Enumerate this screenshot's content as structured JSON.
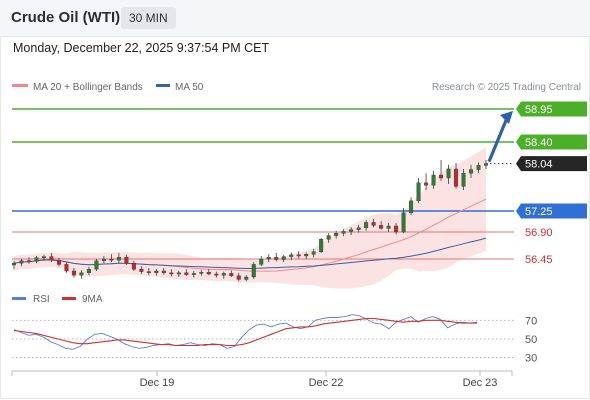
{
  "header": {
    "title": "Crude Oil (WTI)",
    "timeframe": "30 MIN",
    "datetime": "Monday, December 22, 2025 9:37:54 PM CET"
  },
  "legend": {
    "ma20_bb": "MA 20 + Bollinger Bands",
    "ma50": "MA 50",
    "credit": "Research © 2025 Trading Central"
  },
  "rsi_legend": {
    "rsi": "RSI",
    "ma": "9MA"
  },
  "colors": {
    "up": "#2e7d32",
    "down": "#c62828",
    "green_level": "#4caf2a",
    "blue_level": "#2f6fd6",
    "red_level": "#e57373",
    "red_text": "#d32f2f",
    "current": "#262626",
    "ma20": "#f08a8a",
    "ma50": "#3a5ea8",
    "bb_fill": "#fbdada",
    "rsi": "#5b7fd6",
    "rsi_ma": "#d32f2f",
    "arrow": "#2f5fa8"
  },
  "chart_data": [
    {
      "type": "candlestick",
      "y_range": [
        56.05,
        59.1
      ],
      "x_ticks": [
        "Dec 19",
        "Dec 22",
        "Dec 23"
      ],
      "levels": [
        {
          "value": 58.95,
          "label": "58.95",
          "kind": "resistance",
          "style": "green"
        },
        {
          "value": 58.4,
          "label": "58.40",
          "kind": "resistance",
          "style": "green"
        },
        {
          "value": 58.04,
          "label": "58.04",
          "kind": "current",
          "style": "dark"
        },
        {
          "value": 57.25,
          "label": "57.25",
          "kind": "pivot",
          "style": "blue"
        },
        {
          "value": 56.9,
          "label": "56.90",
          "kind": "support",
          "style": "red"
        },
        {
          "value": 56.45,
          "label": "56.45",
          "kind": "support",
          "style": "red"
        }
      ],
      "candles": [
        [
          56.35,
          56.42,
          56.28,
          56.38
        ],
        [
          56.38,
          56.45,
          56.33,
          56.42
        ],
        [
          56.42,
          56.48,
          56.37,
          56.41
        ],
        [
          56.41,
          56.5,
          56.38,
          56.47
        ],
        [
          56.47,
          56.52,
          56.42,
          56.49
        ],
        [
          56.49,
          56.55,
          56.4,
          56.43
        ],
        [
          56.43,
          56.47,
          56.33,
          56.36
        ],
        [
          56.36,
          56.4,
          56.22,
          56.25
        ],
        [
          56.25,
          56.3,
          56.14,
          56.18
        ],
        [
          56.18,
          56.26,
          56.12,
          56.22
        ],
        [
          56.22,
          56.32,
          56.18,
          56.28
        ],
        [
          56.28,
          56.45,
          56.25,
          56.42
        ],
        [
          56.42,
          56.5,
          56.38,
          56.45
        ],
        [
          56.45,
          56.53,
          56.4,
          56.43
        ],
        [
          56.43,
          56.55,
          56.38,
          56.48
        ],
        [
          56.48,
          56.52,
          56.35,
          56.38
        ],
        [
          56.38,
          56.42,
          56.25,
          56.28
        ],
        [
          56.28,
          56.33,
          56.2,
          56.24
        ],
        [
          56.24,
          56.3,
          56.18,
          56.22
        ],
        [
          56.22,
          56.28,
          56.17,
          56.25
        ],
        [
          56.25,
          56.3,
          56.19,
          56.22
        ],
        [
          56.22,
          56.28,
          56.16,
          56.2
        ],
        [
          56.2,
          56.25,
          56.15,
          56.22
        ],
        [
          56.22,
          56.28,
          56.17,
          56.19
        ],
        [
          56.19,
          56.25,
          56.14,
          56.21
        ],
        [
          56.21,
          56.27,
          56.17,
          56.23
        ],
        [
          56.23,
          56.28,
          56.18,
          56.2
        ],
        [
          56.2,
          56.24,
          56.14,
          56.18
        ],
        [
          56.18,
          56.24,
          56.12,
          56.21
        ],
        [
          56.21,
          56.26,
          56.15,
          56.17
        ],
        [
          56.17,
          56.22,
          56.08,
          56.11
        ],
        [
          56.11,
          56.18,
          56.08,
          56.15
        ],
        [
          56.15,
          56.4,
          56.12,
          56.36
        ],
        [
          56.36,
          56.5,
          56.33,
          56.45
        ],
        [
          56.45,
          56.53,
          56.4,
          56.48
        ],
        [
          56.48,
          56.55,
          56.41,
          56.44
        ],
        [
          56.44,
          56.52,
          56.4,
          56.49
        ],
        [
          56.49,
          56.56,
          56.43,
          56.52
        ],
        [
          56.52,
          56.58,
          56.46,
          56.5
        ],
        [
          56.5,
          56.56,
          56.45,
          56.53
        ],
        [
          56.53,
          56.62,
          56.48,
          56.57
        ],
        [
          56.57,
          56.8,
          56.55,
          56.78
        ],
        [
          56.78,
          56.88,
          56.72,
          56.84
        ],
        [
          56.84,
          56.92,
          56.79,
          56.88
        ],
        [
          56.88,
          56.95,
          56.83,
          56.91
        ],
        [
          56.91,
          56.98,
          56.85,
          56.94
        ],
        [
          56.94,
          57.02,
          56.89,
          56.97
        ],
        [
          56.97,
          57.1,
          56.92,
          57.06
        ],
        [
          57.06,
          57.12,
          56.98,
          57.01
        ],
        [
          57.01,
          57.08,
          56.94,
          56.96
        ],
        [
          56.96,
          57.05,
          56.9,
          57.0
        ],
        [
          57.0,
          57.05,
          56.86,
          56.9
        ],
        [
          56.9,
          57.3,
          56.88,
          57.22
        ],
        [
          57.22,
          57.48,
          57.18,
          57.42
        ],
        [
          57.42,
          57.8,
          57.38,
          57.72
        ],
        [
          57.72,
          57.88,
          57.6,
          57.68
        ],
        [
          57.68,
          57.92,
          57.62,
          57.85
        ],
        [
          57.85,
          58.1,
          57.75,
          57.8
        ],
        [
          57.8,
          58.02,
          57.7,
          57.95
        ],
        [
          57.95,
          58.05,
          57.62,
          57.66
        ],
        [
          57.66,
          57.95,
          57.6,
          57.88
        ],
        [
          57.88,
          58.02,
          57.8,
          57.94
        ],
        [
          57.94,
          58.06,
          57.88,
          58.01
        ],
        [
          58.01,
          58.1,
          57.95,
          58.04
        ]
      ]
    },
    {
      "type": "line",
      "name": "RSI",
      "y_ticks": [
        70,
        50,
        30
      ],
      "y_range": [
        20,
        80
      ],
      "series": [
        {
          "name": "RSI",
          "values": [
            60,
            57,
            54,
            55,
            52,
            47,
            44,
            40,
            39,
            42,
            50,
            55,
            56,
            53,
            50,
            45,
            42,
            40,
            41,
            43,
            44,
            45,
            43,
            44,
            46,
            44,
            43,
            45,
            44,
            40,
            42,
            52,
            60,
            65,
            66,
            63,
            66,
            67,
            63,
            61,
            63,
            70,
            72,
            73,
            73,
            74,
            76,
            75,
            71,
            67,
            66,
            61,
            68,
            71,
            74,
            68,
            72,
            74,
            71,
            62,
            66,
            68,
            67,
            68
          ]
        },
        {
          "name": "9MA",
          "values": [
            59,
            58,
            57,
            56,
            54,
            52,
            50,
            48,
            46,
            45,
            45,
            46,
            47,
            48,
            49,
            49,
            48,
            47,
            46,
            45,
            44,
            44,
            43,
            43,
            43,
            43,
            44,
            44,
            44,
            43,
            43,
            44,
            46,
            49,
            52,
            55,
            58,
            61,
            62,
            63,
            63,
            64,
            66,
            67,
            68,
            69,
            70,
            71,
            72,
            72,
            71,
            70,
            69,
            68,
            69,
            69,
            70,
            70,
            70,
            69,
            68,
            67,
            67,
            67
          ]
        }
      ]
    }
  ]
}
